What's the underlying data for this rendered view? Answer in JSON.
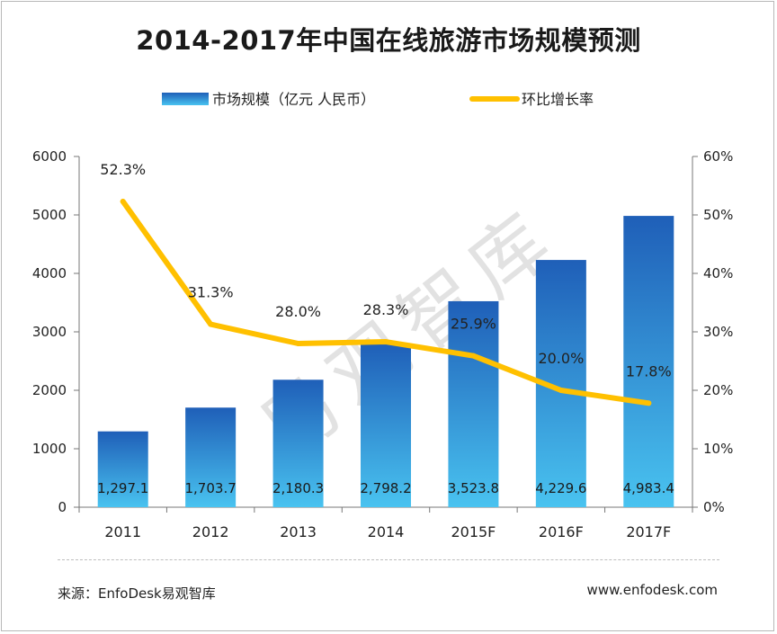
{
  "chart_data": {
    "type": "bar+line",
    "title": "2014-2017年中国在线旅游市场规模预测",
    "categories": [
      "2011",
      "2012",
      "2013",
      "2014",
      "2015F",
      "2016F",
      "2017F"
    ],
    "series": [
      {
        "name": "市场规模（亿元 人民币）",
        "type": "bar",
        "axis": "left",
        "values": [
          1297.1,
          1703.7,
          2180.3,
          2798.2,
          3523.8,
          4229.6,
          4983.4
        ],
        "labels": [
          "1,297.1",
          "1,703.7",
          "2,180.3",
          "2,798.2",
          "3,523.8",
          "4,229.6",
          "4,983.4"
        ]
      },
      {
        "name": "环比增长率",
        "type": "line",
        "axis": "right",
        "values": [
          52.3,
          31.3,
          28.0,
          28.3,
          25.9,
          20.0,
          17.8
        ],
        "labels": [
          "52.3%",
          "31.3%",
          "28.0%",
          "28.3%",
          "25.9%",
          "20.0%",
          "17.8%"
        ]
      }
    ],
    "y_left": {
      "lim": [
        0,
        6000
      ],
      "ticks": [
        "0",
        "1000",
        "2000",
        "3000",
        "4000",
        "5000",
        "6000"
      ]
    },
    "y_right": {
      "lim": [
        0,
        60
      ],
      "ticks": [
        "0%",
        "10%",
        "20%",
        "30%",
        "40%",
        "50%",
        "60%"
      ]
    },
    "legend_position": "top-center",
    "colors": {
      "bar_top": "#1f5fb8",
      "bar_bottom": "#49c3f0",
      "line": "#ffc000"
    }
  },
  "watermark": "易观智库",
  "footer": {
    "source": "来源：EnfoDesk易观智库",
    "website": "www.enfodesk.com"
  }
}
